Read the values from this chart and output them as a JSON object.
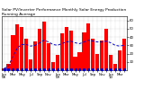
{
  "title": "Solar PV/Inverter Performance Monthly Solar Energy Production Running Average",
  "bar_values": [
    2,
    8,
    42,
    55,
    52,
    38,
    13,
    35,
    50,
    58,
    32,
    10,
    18,
    44,
    52,
    48,
    16,
    22,
    46,
    56,
    38,
    20,
    36,
    50,
    18,
    8,
    24,
    38
  ],
  "avg_values": [
    2,
    5,
    17,
    27,
    31,
    31,
    29,
    30,
    33,
    36,
    34,
    31,
    30,
    32,
    34,
    35,
    33,
    32,
    34,
    36,
    35,
    34,
    34,
    35,
    33,
    30,
    29,
    30
  ],
  "dot_values": [
    1,
    1,
    1,
    1,
    1,
    1,
    1,
    1,
    1,
    1,
    1,
    1,
    1,
    1,
    1,
    1,
    1,
    1,
    1,
    1,
    1,
    1,
    1,
    1,
    1,
    1,
    1,
    1
  ],
  "x_labels": [
    "Jan\n08",
    "",
    "Mar\n",
    "",
    "May\n",
    "",
    "Jul\n",
    "",
    "Sep\n",
    "",
    "Nov\n",
    "",
    "Jan\n09",
    "",
    "Mar\n",
    "",
    "May\n",
    "",
    "Jul\n",
    "",
    "Sep\n",
    "",
    "Nov\n",
    "",
    "Jan\n10",
    "",
    "Mar\n",
    ""
  ],
  "ylim": [
    0,
    65
  ],
  "yticks": [
    10,
    20,
    30,
    40,
    50,
    60
  ],
  "bar_color": "#ff0000",
  "avg_line_color": "#0000cd",
  "dot_color": "#0000cd",
  "bg_color": "#ffffff",
  "grid_color": "#aaaaaa",
  "title_fontsize": 3.2,
  "tick_fontsize": 2.8,
  "label_fontsize": 2.8
}
